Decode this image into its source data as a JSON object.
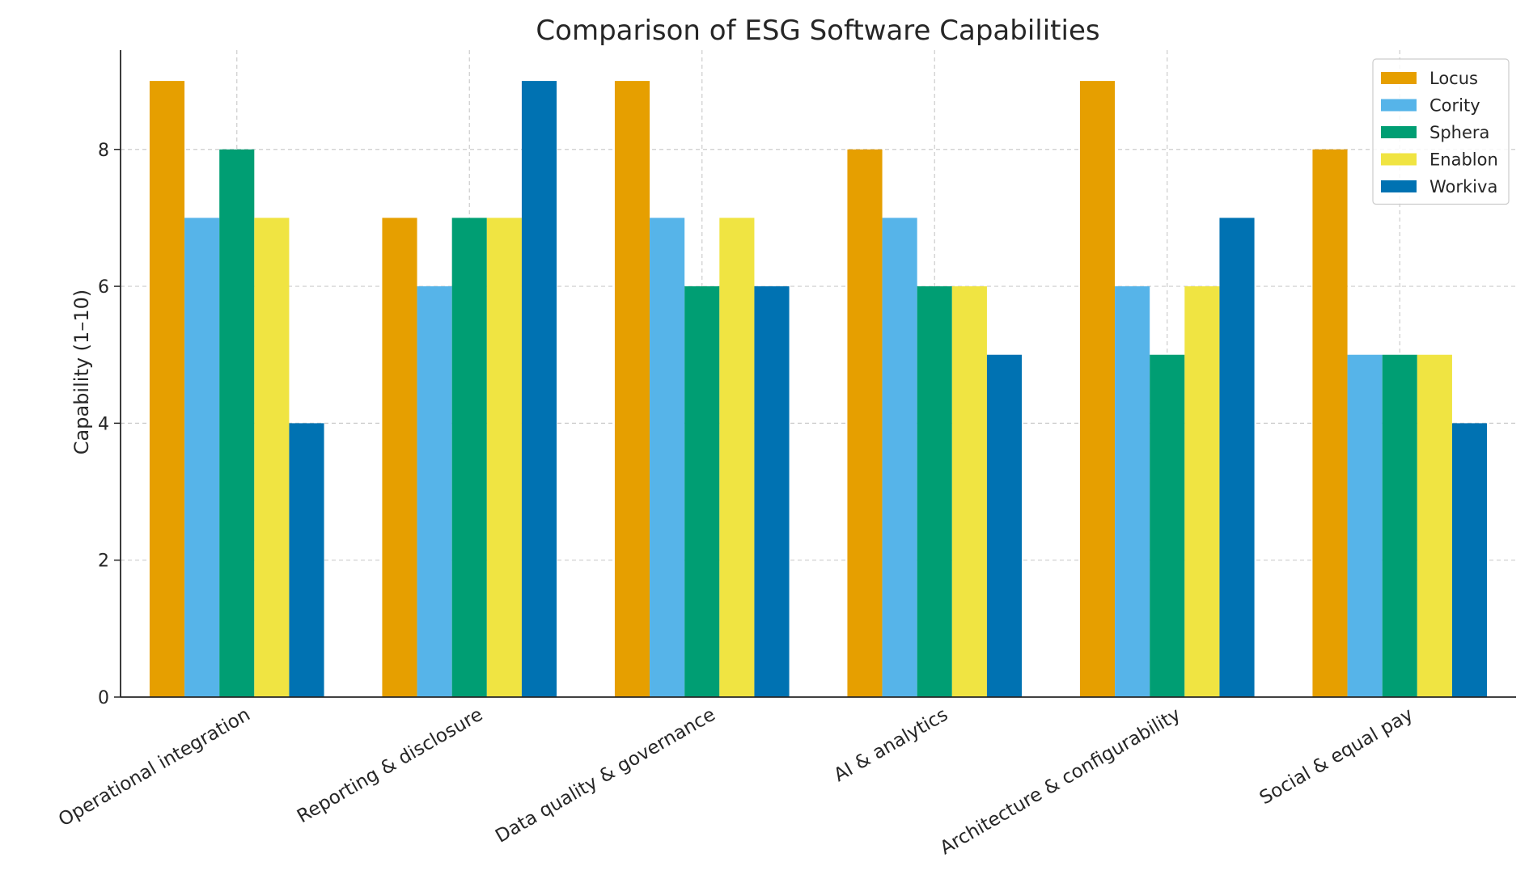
{
  "chart_data": {
    "type": "bar",
    "title": "Comparison of ESG Software Capabilities",
    "xlabel": "",
    "ylabel": "Capability (1–10)",
    "ylim": [
      0,
      9.45
    ],
    "yticks": [
      0,
      2,
      4,
      6,
      8
    ],
    "grid": true,
    "legend_position": "top-right",
    "categories": [
      "Operational integration",
      "Reporting & disclosure",
      "Data quality & governance",
      "AI & analytics",
      "Architecture & configurability",
      "Social & equal pay"
    ],
    "series": [
      {
        "name": "Locus",
        "color": "#E69F00",
        "values": [
          9,
          7,
          9,
          8,
          9,
          8
        ]
      },
      {
        "name": "Cority",
        "color": "#56B4E9",
        "values": [
          7,
          6,
          7,
          7,
          6,
          5
        ]
      },
      {
        "name": "Sphera",
        "color": "#009E73",
        "values": [
          8,
          7,
          6,
          6,
          5,
          5
        ]
      },
      {
        "name": "Enablon",
        "color": "#F0E442",
        "values": [
          7,
          7,
          7,
          6,
          6,
          5
        ]
      },
      {
        "name": "Workiva",
        "color": "#0072B2",
        "values": [
          4,
          9,
          6,
          5,
          7,
          4
        ]
      }
    ]
  }
}
